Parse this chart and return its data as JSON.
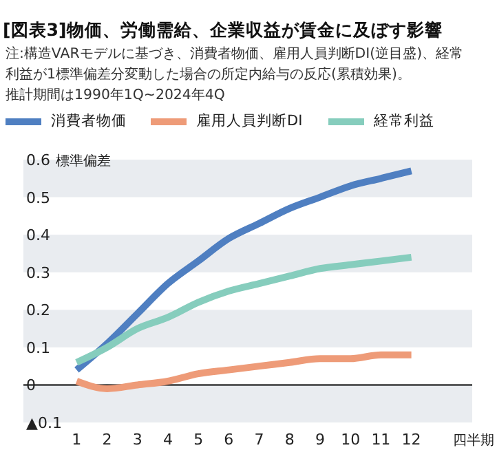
{
  "chart_data": {
    "type": "line",
    "title": "[図表3]物価、労働需給、企業収益が賃金に及ぼす影響",
    "annotations": [
      "注:構造VARモデルに基づき、消費者物価、雇用人員判断DI(逆目盛)、経常利益が1標準偏差分変動した場合の所定内給与の反応(累積効果)。",
      "推計期間は1990年1Q~2024年4Q"
    ],
    "ylabel": "標準偏差",
    "xlabel": "四半期",
    "x": [
      1,
      2,
      3,
      4,
      5,
      6,
      7,
      8,
      9,
      10,
      11,
      12
    ],
    "series": [
      {
        "name": "消費者物価",
        "color": "#4f7fc1",
        "values": [
          0.04,
          0.11,
          0.19,
          0.27,
          0.33,
          0.39,
          0.43,
          0.47,
          0.5,
          0.53,
          0.55,
          0.57
        ]
      },
      {
        "name": "雇用人員判断DI",
        "color": "#ee9b78",
        "values": [
          0.01,
          -0.01,
          0,
          0.01,
          0.03,
          0.04,
          0.05,
          0.06,
          0.07,
          0.07,
          0.08,
          0.08
        ]
      },
      {
        "name": "経常利益",
        "color": "#86cdbd",
        "values": [
          0.06,
          0.1,
          0.15,
          0.18,
          0.22,
          0.25,
          0.27,
          0.29,
          0.31,
          0.32,
          0.33,
          0.34
        ]
      }
    ],
    "xlim": [
      -0.75,
      14
    ],
    "xticks": [
      1,
      2,
      3,
      4,
      5,
      6,
      7,
      8,
      9,
      10,
      11,
      12
    ],
    "ylim": [
      -0.1,
      0.6
    ],
    "yticks": [
      {
        "value": -0.1,
        "label": "▲0.1"
      },
      0,
      0.1,
      0.2,
      0.3,
      0.4,
      0.5,
      0.6
    ],
    "bands": [
      {
        "axis": "y",
        "from": -0.1,
        "to": 0,
        "color": "#e9ecf0"
      },
      {
        "axis": "y",
        "from": 0.1,
        "to": 0.2,
        "color": "#e9ecf0"
      },
      {
        "axis": "y",
        "from": 0.3,
        "to": 0.4,
        "color": "#e9ecf0"
      },
      {
        "axis": "y",
        "from": 0.5,
        "to": 0.6,
        "color": "#e9ecf0"
      }
    ],
    "ref_lines": [
      {
        "axis": "y",
        "value": 0,
        "color": "#000000"
      }
    ],
    "legend": "top",
    "line_style": "solid",
    "marker": "none"
  }
}
